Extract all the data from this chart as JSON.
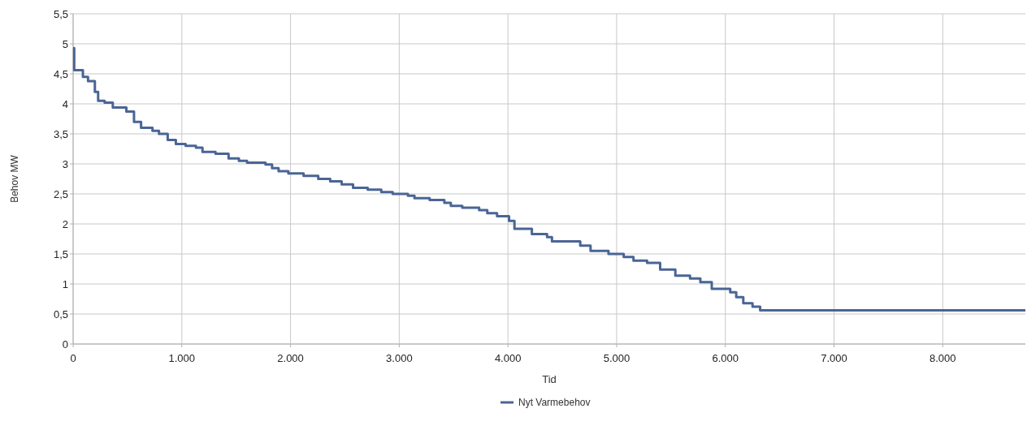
{
  "chart_data": {
    "type": "step",
    "xlabel": "Tid",
    "ylabel": "Behov MW",
    "x": [
      0,
      10,
      90,
      137,
      200,
      230,
      290,
      365,
      490,
      560,
      625,
      730,
      790,
      870,
      945,
      1035,
      1130,
      1190,
      1310,
      1430,
      1525,
      1600,
      1770,
      1830,
      1890,
      1980,
      2120,
      2255,
      2365,
      2470,
      2575,
      2710,
      2835,
      2940,
      3080,
      3140,
      3280,
      3415,
      3475,
      3580,
      3735,
      3810,
      3900,
      4010,
      4060,
      4220,
      4360,
      4405,
      4665,
      4760,
      4925,
      5065,
      5155,
      5280,
      5400,
      5540,
      5675,
      5770,
      5875,
      6045,
      6100,
      6165,
      6250,
      6320,
      8760
    ],
    "series": [
      {
        "name": "Nyt Varmebehov",
        "color": "#4a6595",
        "values": [
          4.93,
          4.56,
          4.45,
          4.38,
          4.2,
          4.05,
          4.02,
          3.94,
          3.87,
          3.7,
          3.6,
          3.55,
          3.5,
          3.4,
          3.33,
          3.3,
          3.27,
          3.2,
          3.17,
          3.09,
          3.05,
          3.02,
          2.99,
          2.93,
          2.88,
          2.84,
          2.8,
          2.75,
          2.71,
          2.66,
          2.6,
          2.57,
          2.53,
          2.5,
          2.47,
          2.43,
          2.4,
          2.35,
          2.3,
          2.27,
          2.23,
          2.18,
          2.13,
          2.05,
          1.92,
          1.83,
          1.78,
          1.71,
          1.64,
          1.55,
          1.5,
          1.45,
          1.39,
          1.35,
          1.24,
          1.14,
          1.09,
          1.03,
          0.92,
          0.86,
          0.78,
          0.68,
          0.62,
          0.56,
          0.56
        ]
      }
    ],
    "xlim": [
      0,
      8760
    ],
    "xticks": [
      0,
      {
        "value": 1000,
        "label": "1.000"
      },
      {
        "value": 2000,
        "label": "2.000"
      },
      {
        "value": 3000,
        "label": "3.000"
      },
      {
        "value": 4000,
        "label": "4.000"
      },
      {
        "value": 5000,
        "label": "5.000"
      },
      {
        "value": 6000,
        "label": "6.000"
      },
      {
        "value": 7000,
        "label": "7.000"
      },
      {
        "value": 8000,
        "label": "8.000"
      }
    ],
    "ylim": [
      0,
      5.5
    ],
    "yticks": [
      0,
      {
        "value": 0.5,
        "label": "0,5"
      },
      1,
      {
        "value": 1.5,
        "label": "1,5"
      },
      2,
      {
        "value": 2.5,
        "label": "2,5"
      },
      3,
      {
        "value": 3.5,
        "label": "3,5"
      },
      4,
      {
        "value": 4.5,
        "label": "4,5"
      },
      5,
      {
        "value": 5.5,
        "label": "5,5"
      }
    ],
    "grid": true,
    "legend": "bottom",
    "marker": "none",
    "line_style": "solid"
  }
}
